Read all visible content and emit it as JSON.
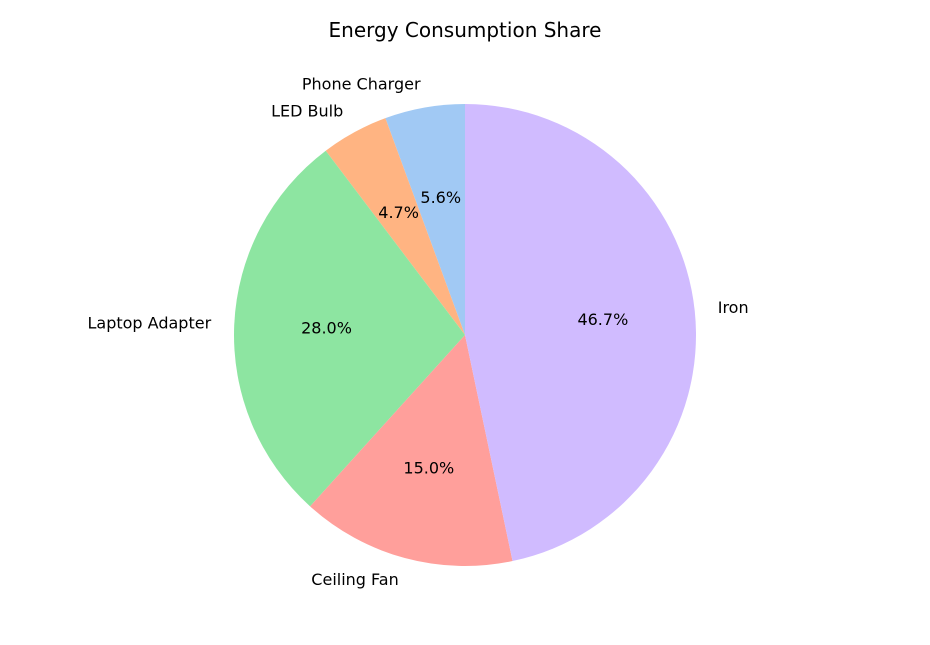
{
  "chart_data": {
    "type": "pie",
    "title": "Energy Consumption Share",
    "categories": [
      "Phone Charger",
      "LED Bulb",
      "Laptop Adapter",
      "Ceiling Fan",
      "Iron"
    ],
    "values": [
      5.6,
      4.7,
      28.0,
      15.0,
      46.7
    ],
    "value_labels": [
      "5.6%",
      "4.7%",
      "28.0%",
      "15.0%",
      "46.7%"
    ],
    "colors": [
      "#a1c9f4",
      "#ffb482",
      "#8de5a1",
      "#ff9f9b",
      "#d0bbff"
    ],
    "start_angle_deg": 90,
    "direction": "counterclockwise",
    "legend": "none"
  }
}
